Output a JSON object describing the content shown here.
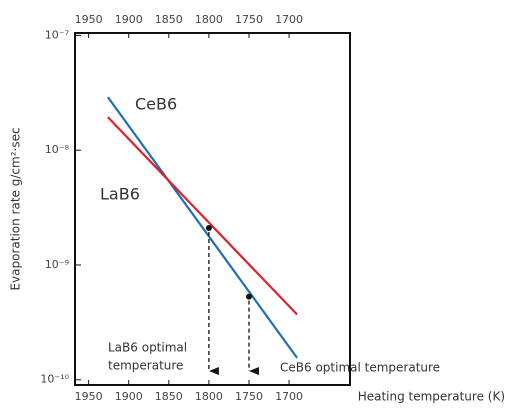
{
  "chart_data": {
    "type": "line",
    "xlabel": "Heating temperature (K)",
    "ylabel": "Evaporation rate g/cm²·sec",
    "xlim": [
      1967,
      1624
    ],
    "xticks": [
      1950,
      1900,
      1850,
      1800,
      1750,
      1700
    ],
    "ylim": [
      9e-11,
      1.05e-07
    ],
    "log_y": true,
    "yticks": [
      {
        "value": 1e-07,
        "label": "10⁻⁷"
      },
      {
        "value": 1e-08,
        "label": "10⁻⁸"
      },
      {
        "value": 1e-09,
        "label": "10⁻⁹"
      },
      {
        "value": 1e-10,
        "label": "10⁻¹⁰"
      }
    ],
    "series": [
      {
        "name": "CeB6",
        "color": "#1f6fb5",
        "x": [
          1926,
          1690
        ],
        "values": [
          2.9e-08,
          1.55e-10
        ],
        "marker": {
          "x": 1750,
          "y": 5.3e-10
        }
      },
      {
        "name": "LaB6",
        "color": "#e0202a",
        "x": [
          1926,
          1690
        ],
        "values": [
          1.94e-08,
          3.7e-10
        ],
        "marker": {
          "x": 1800,
          "y": 2.1e-09
        }
      }
    ],
    "annotations": [
      "LaB6 optimal",
      "temperature",
      "CeB6 optimal temperature"
    ]
  }
}
